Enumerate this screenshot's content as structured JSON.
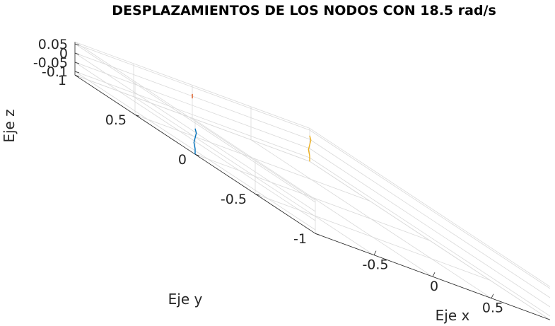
{
  "chart_data": {
    "type": "line3d",
    "title": "DESPLAZAMIENTOS DE LOS NODOS CON 18.5 rad/s",
    "xlabel": "Eje x",
    "ylabel": "Eje y",
    "zlabel": "Eje z",
    "xlim": [
      -1,
      1
    ],
    "ylim": [
      -1,
      1
    ],
    "zlim": [
      -0.12,
      0.06
    ],
    "xticks": [
      -0.5,
      0,
      0.5
    ],
    "xtick_labels": [
      "-0.5",
      "0",
      "0.5"
    ],
    "yticks": [
      -1,
      -0.5,
      0,
      0.5,
      1
    ],
    "ytick_labels": [
      "-1",
      "-0.5",
      "0",
      "0.5",
      "1"
    ],
    "zticks": [
      0.05,
      0,
      -0.05,
      -0.1
    ],
    "ztick_labels": [
      "0.05",
      "0",
      "-0.05",
      "-0.1"
    ],
    "grid": true,
    "series": [
      {
        "color": "#0072BD",
        "x": [
          -1,
          -1,
          -1,
          -1,
          -1,
          -1
        ],
        "y": [
          0,
          0.0,
          0.01,
          0.0,
          -0.01,
          0
        ],
        "z": [
          -0.12,
          -0.09,
          -0.06,
          -0.03,
          0.0,
          0.02
        ]
      },
      {
        "color": "#D95319",
        "x": [
          0,
          0,
          0
        ],
        "y": [
          1,
          1,
          1
        ],
        "z": [
          -0.012,
          0.0,
          0.012
        ]
      },
      {
        "color": "#EDB120",
        "x": [
          1,
          1,
          1,
          1,
          1,
          1
        ],
        "y": [
          1,
          1.0,
          1.01,
          1.0,
          0.99,
          1
        ],
        "z": [
          -0.12,
          -0.09,
          -0.06,
          -0.03,
          0.0,
          0.02
        ]
      }
    ]
  }
}
